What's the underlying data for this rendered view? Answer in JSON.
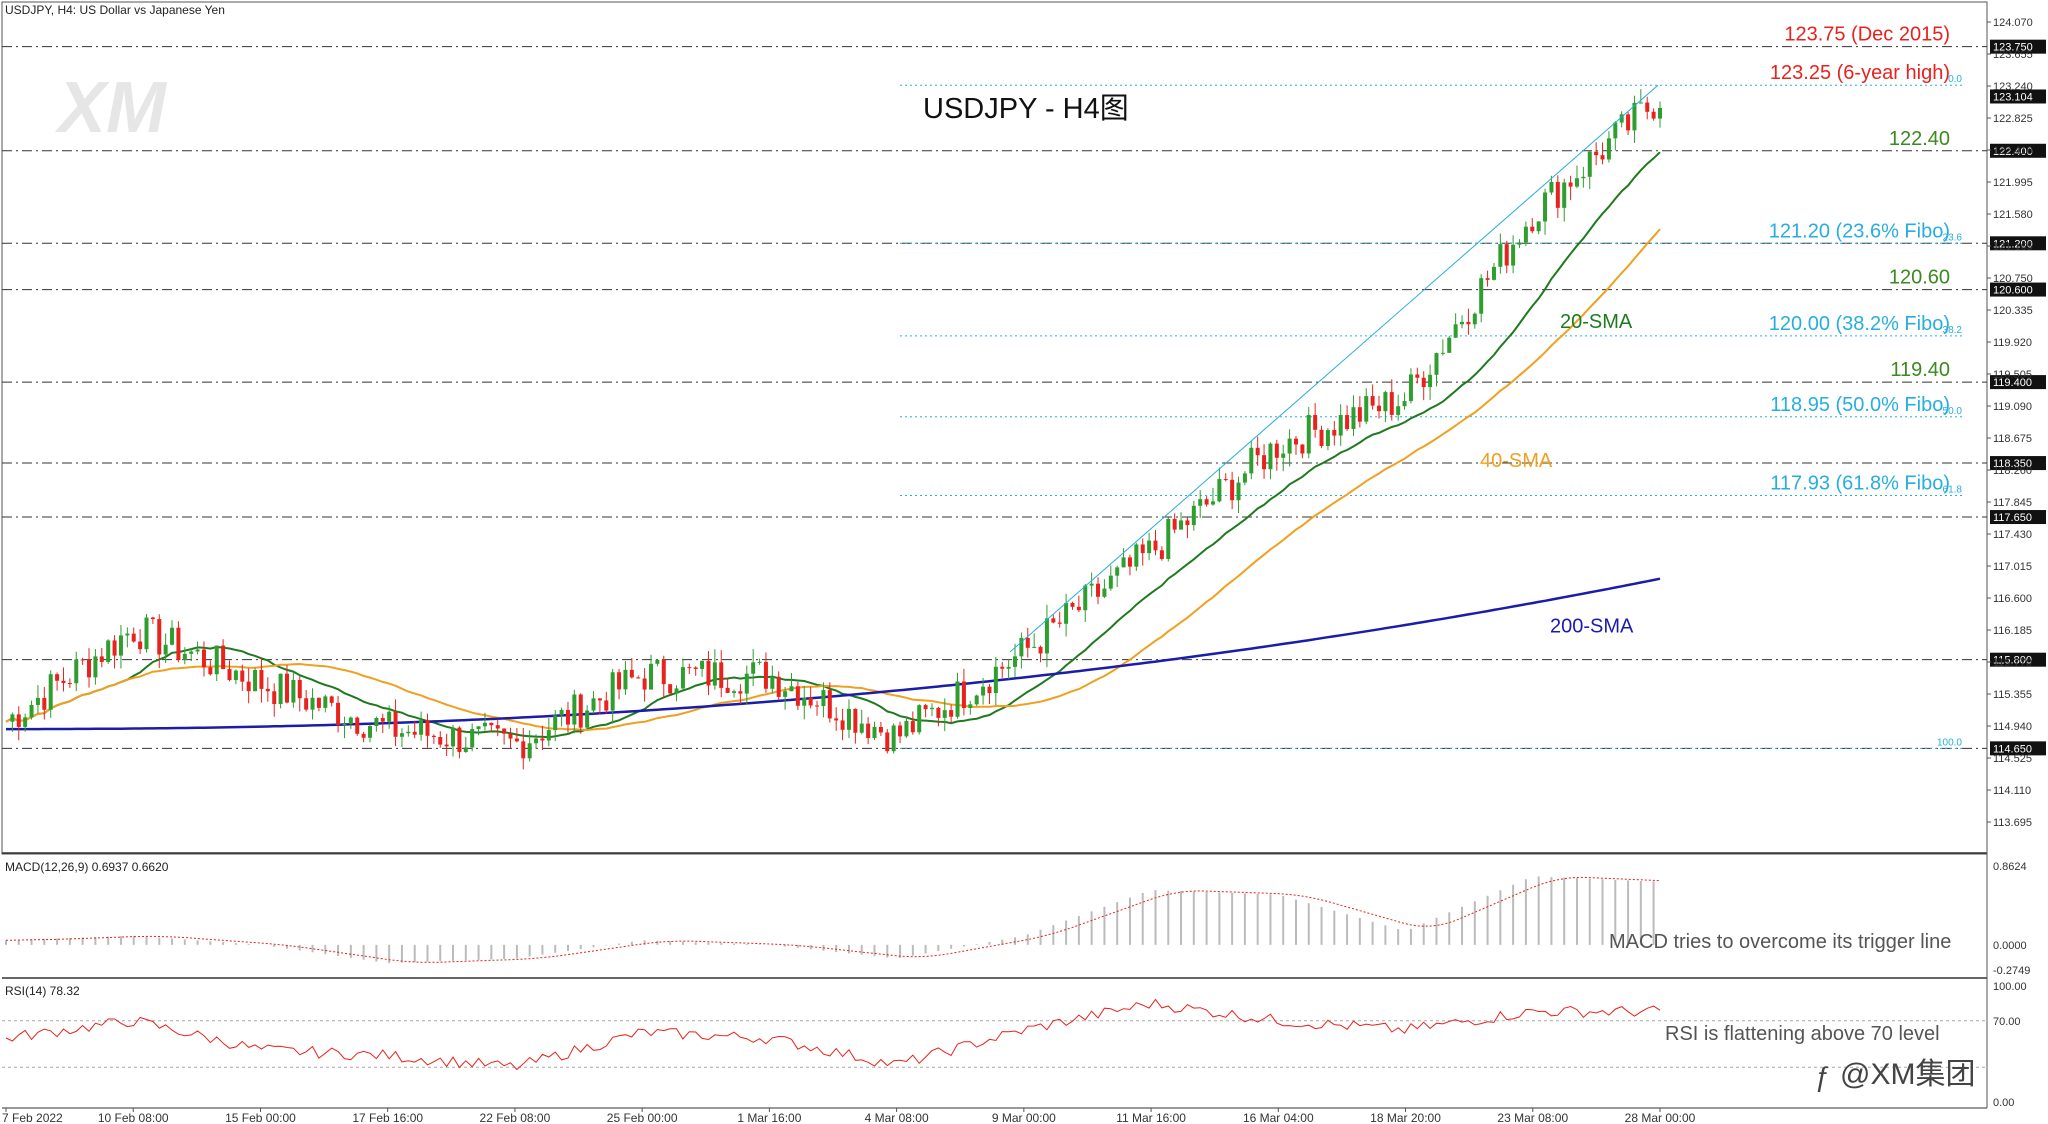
{
  "header": {
    "symbol_info": "USDJPY, H4:  US Dollar vs Japanese Yen"
  },
  "watermark": {
    "logo": "XM",
    "social": "@XM集团"
  },
  "chart_data": [
    {
      "type": "candlestick",
      "title": "USDJPY - H4图",
      "ylim": [
        113.4,
        124.2
      ],
      "price_ticks": [
        "124.070",
        "123.655",
        "123.240",
        "122.825",
        "122.410",
        "121.995",
        "121.580",
        "121.165",
        "120.750",
        "120.335",
        "119.920",
        "119.505",
        "119.090",
        "118.675",
        "118.260",
        "117.845",
        "117.430",
        "117.015",
        "116.600",
        "116.185",
        "115.770",
        "115.355",
        "114.940",
        "114.525",
        "114.110",
        "113.695"
      ],
      "time_labels": [
        "7 Feb 2022",
        "10 Feb 08:00",
        "15 Feb 00:00",
        "17 Feb 16:00",
        "22 Feb 08:00",
        "25 Feb 00:00",
        "1 Mar 16:00",
        "4 Mar 08:00",
        "9 Mar 00:00",
        "11 Mar 16:00",
        "16 Mar 04:00",
        "18 Mar 20:00",
        "23 Mar 08:00",
        "28 Mar 00:00"
      ],
      "levels": [
        {
          "value": 123.75,
          "label": "123.75 (Dec 2015)",
          "tag": "123.750",
          "color": "#e8221c",
          "style": "dashdot"
        },
        {
          "value": 123.25,
          "label": "123.25 (6-year high)",
          "tag": "",
          "color": "#e8221c",
          "style": "fibo",
          "fibo": "0.0"
        },
        {
          "value": 123.104,
          "label": "",
          "tag": "123.104",
          "color": "",
          "style": "price"
        },
        {
          "value": 122.4,
          "label": "122.40",
          "tag": "122.400",
          "color": "#3b8a1e",
          "style": "dashdot"
        },
        {
          "value": 121.2,
          "label": "121.20 (23.6% Fibo)",
          "tag": "121.200",
          "color": "#27aee0",
          "style": "both",
          "fibo": "23.6"
        },
        {
          "value": 120.6,
          "label": "120.60",
          "tag": "120.600",
          "color": "#3b8a1e",
          "style": "dashdot"
        },
        {
          "value": 120.0,
          "label": "120.00 (38.2% Fibo)",
          "tag": "",
          "color": "#27aee0",
          "style": "fibo",
          "fibo": "38.2"
        },
        {
          "value": 119.4,
          "label": "119.40",
          "tag": "119.400",
          "color": "#3b8a1e",
          "style": "dashdot"
        },
        {
          "value": 118.95,
          "label": "118.95 (50.0% Fibo)",
          "tag": "",
          "color": "#27aee0",
          "style": "fibo",
          "fibo": "50.0"
        },
        {
          "value": 118.35,
          "label": "",
          "tag": "118.350",
          "color": "",
          "style": "dashdot"
        },
        {
          "value": 117.93,
          "label": "117.93 (61.8% Fibo)",
          "tag": "",
          "color": "#27aee0",
          "style": "fibo",
          "fibo": "61.8"
        },
        {
          "value": 117.65,
          "label": "",
          "tag": "117.650",
          "color": "",
          "style": "dashdot"
        },
        {
          "value": 115.8,
          "label": "",
          "tag": "115.800",
          "color": "",
          "style": "dashdot"
        },
        {
          "value": 114.65,
          "label": "",
          "tag": "114.650",
          "color": "",
          "style": "fibo100",
          "fibo": "100.0"
        }
      ],
      "ma_labels": [
        {
          "label": "20-SMA",
          "color": "#1f7a1f"
        },
        {
          "label": "40-SMA",
          "color": "#f0a020"
        },
        {
          "label": "200-SMA",
          "color": "#1c1caa"
        }
      ],
      "key_closes": [
        {
          "date": "7 Feb 2022",
          "close": 115.0
        },
        {
          "date": "10 Feb 08:00",
          "close": 116.2
        },
        {
          "date": "15 Feb 00:00",
          "close": 115.5
        },
        {
          "date": "17 Feb 16:00",
          "close": 114.9
        },
        {
          "date": "22 Feb 08:00",
          "close": 114.7
        },
        {
          "date": "25 Feb 00:00",
          "close": 115.6
        },
        {
          "date": "1 Mar 16:00",
          "close": 115.6
        },
        {
          "date": "4 Mar 08:00",
          "close": 114.8
        },
        {
          "date": "9 Mar 00:00",
          "close": 115.9
        },
        {
          "date": "11 Mar 16:00",
          "close": 117.2
        },
        {
          "date": "16 Mar 04:00",
          "close": 118.6
        },
        {
          "date": "18 Mar 20:00",
          "close": 119.2
        },
        {
          "date": "23 Mar 08:00",
          "close": 121.6
        },
        {
          "date": "28 Mar 00:00",
          "close": 123.1
        }
      ]
    },
    {
      "type": "histogram",
      "title": "MACD(12,26,9) 0.6937 0.6620",
      "ticks": [
        "0.8624",
        "0.0000",
        "-0.2749"
      ],
      "annotation": "MACD tries to overcome its trigger line",
      "key_values": [
        0.05,
        0.1,
        0.0,
        -0.2,
        -0.15,
        0.05,
        0.0,
        -0.15,
        0.1,
        0.6,
        0.55,
        0.15,
        0.75,
        0.69
      ]
    },
    {
      "type": "line",
      "title": "RSI(14) 78.32",
      "ticks": [
        "100.00",
        "70.00",
        "0.00"
      ],
      "ylim": [
        0,
        100
      ],
      "annotation": "RSI is flattening above 70 level",
      "key_values": [
        55,
        70,
        45,
        40,
        30,
        60,
        55,
        32,
        62,
        85,
        70,
        62,
        78,
        78
      ]
    }
  ]
}
